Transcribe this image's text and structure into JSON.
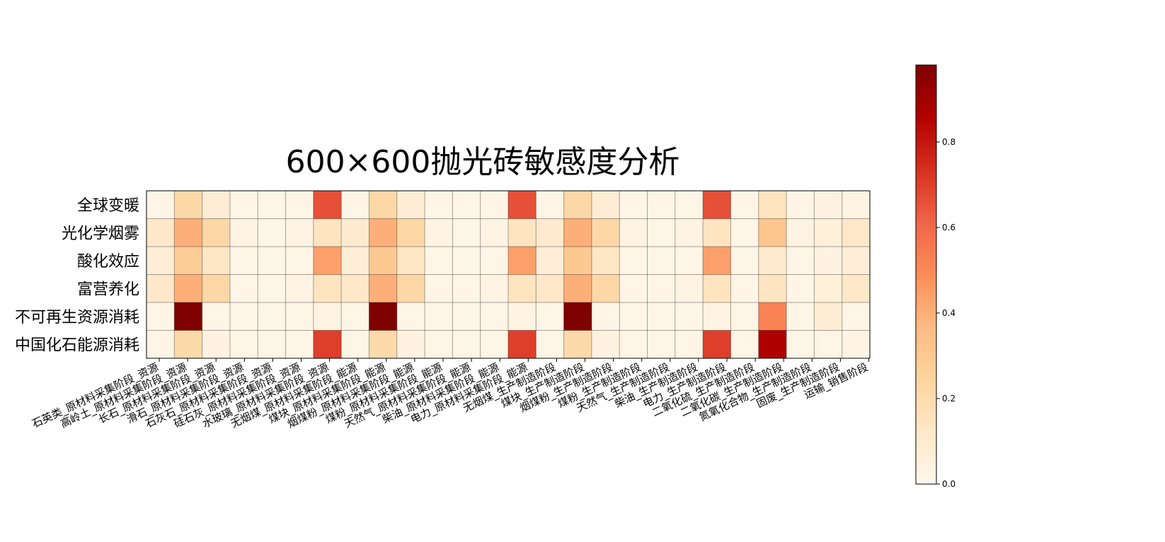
{
  "chart_data": {
    "type": "heatmap",
    "title": "600×600抛光砖敏感度分析",
    "rows": [
      "全球变暖",
      "光化学烟雾",
      "酸化效应",
      "富营养化",
      "不可再生资源消耗",
      "中国化石能源消耗"
    ],
    "columns": [
      "石英类_原材料采集阶段_资源",
      "高岭土_原材料采集阶段_资源",
      "长石_原材料采集阶段_资源",
      "滑石_原材料采集阶段_资源",
      "石灰石_原材料采集阶段_资源",
      "硅石灰_原材料采集阶段_资源",
      "水玻璃_原材料采集阶段_资源",
      "无烟煤_原材料采集阶段_能源",
      "煤块_原材料采集阶段_能源",
      "烟煤粉_原材料采集阶段_能源",
      "煤粉_原材料采集阶段_能源",
      "天然气_原材料采集阶段_能源",
      "柴油_原材料采集阶段_能源",
      "电力_原材料采集阶段_能源",
      "无烟煤_生产制造阶段",
      "煤块_生产制造阶段",
      "烟煤粉_生产制造阶段",
      "煤粉_生产制造阶段",
      "天然气_生产制造阶段",
      "柴油_生产制造阶段",
      "电力_生产制造阶段",
      "二氧化硫_生产制造阶段",
      "二氧化碳_生产制造阶段",
      "氮氧化合物_生产制造阶段",
      "固废_生产制造阶段",
      "运输_销售阶段"
    ],
    "values": [
      [
        0.02,
        0.22,
        0.08,
        0.02,
        0.02,
        0.02,
        0.66,
        0.02,
        0.22,
        0.08,
        0.02,
        0.02,
        0.02,
        0.66,
        0.02,
        0.22,
        0.08,
        0.02,
        0.02,
        0.02,
        0.66,
        0.02,
        0.15,
        0.02,
        0.04,
        0.03
      ],
      [
        0.12,
        0.4,
        0.22,
        0.03,
        0.02,
        0.03,
        0.14,
        0.1,
        0.4,
        0.22,
        0.03,
        0.02,
        0.03,
        0.14,
        0.1,
        0.4,
        0.22,
        0.03,
        0.02,
        0.03,
        0.14,
        0.02,
        0.32,
        0.03,
        0.06,
        0.12
      ],
      [
        0.07,
        0.28,
        0.13,
        0.02,
        0.02,
        0.02,
        0.44,
        0.07,
        0.3,
        0.13,
        0.02,
        0.02,
        0.02,
        0.44,
        0.07,
        0.3,
        0.13,
        0.02,
        0.02,
        0.02,
        0.44,
        0.02,
        0.1,
        0.02,
        0.04,
        0.07
      ],
      [
        0.12,
        0.4,
        0.22,
        0.02,
        0.02,
        0.03,
        0.15,
        0.12,
        0.4,
        0.22,
        0.02,
        0.02,
        0.03,
        0.15,
        0.12,
        0.4,
        0.22,
        0.02,
        0.02,
        0.03,
        0.15,
        0.02,
        0.14,
        0.02,
        0.06,
        0.12
      ],
      [
        0.02,
        0.98,
        0.02,
        0.02,
        0.02,
        0.02,
        0.03,
        0.02,
        0.98,
        0.02,
        0.02,
        0.02,
        0.02,
        0.03,
        0.02,
        0.98,
        0.02,
        0.02,
        0.02,
        0.02,
        0.03,
        0.02,
        0.52,
        0.02,
        0.08,
        0.02
      ],
      [
        0.02,
        0.21,
        0.04,
        0.02,
        0.02,
        0.02,
        0.7,
        0.02,
        0.21,
        0.04,
        0.02,
        0.02,
        0.02,
        0.7,
        0.02,
        0.21,
        0.04,
        0.02,
        0.02,
        0.02,
        0.7,
        0.02,
        0.87,
        0.02,
        0.02,
        0.03
      ]
    ],
    "colormap": "OrRd",
    "colorbar": {
      "min": 0.0,
      "max": 0.98,
      "ticks": [
        0.0,
        0.2,
        0.4,
        0.6,
        0.8
      ],
      "tick_labels": [
        "0.0",
        "0.2",
        "0.4",
        "0.6",
        "0.8"
      ]
    },
    "grid": true,
    "xlabel": "",
    "ylabel": ""
  }
}
